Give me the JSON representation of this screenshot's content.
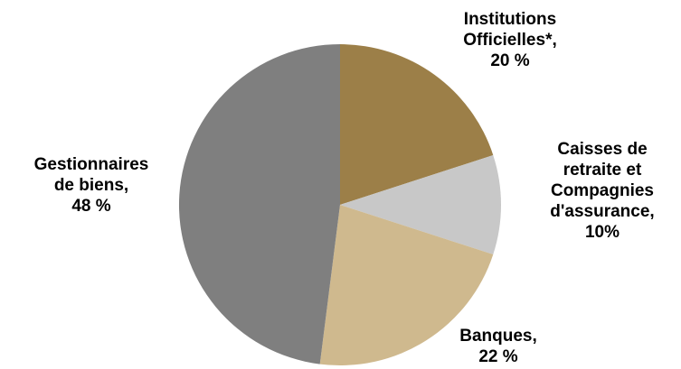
{
  "chart_data": {
    "type": "pie",
    "start_angle_deg": 0,
    "direction": "clockwise",
    "legend": "none",
    "slices": [
      {
        "name": "Institutions Officielles*",
        "value": 20,
        "label_lines": [
          "Institutions",
          "Officielles*,",
          "20 %"
        ],
        "color": "#9c7f48"
      },
      {
        "name": "Caisses de retraite et Compagnies d'assurance",
        "value": 10,
        "label_lines": [
          "Caisses de",
          "retraite et",
          "Compagnies",
          "d'assurance,",
          "10%"
        ],
        "color": "#c8c8c8"
      },
      {
        "name": "Banques",
        "value": 22,
        "label_lines": [
          "Banques,",
          "22 %"
        ],
        "color": "#cfb98e"
      },
      {
        "name": "Gestionnaires de biens",
        "value": 48,
        "label_lines": [
          "Gestionnaires",
          "de biens,",
          "48 %"
        ],
        "color": "#7f7f7f"
      }
    ]
  }
}
